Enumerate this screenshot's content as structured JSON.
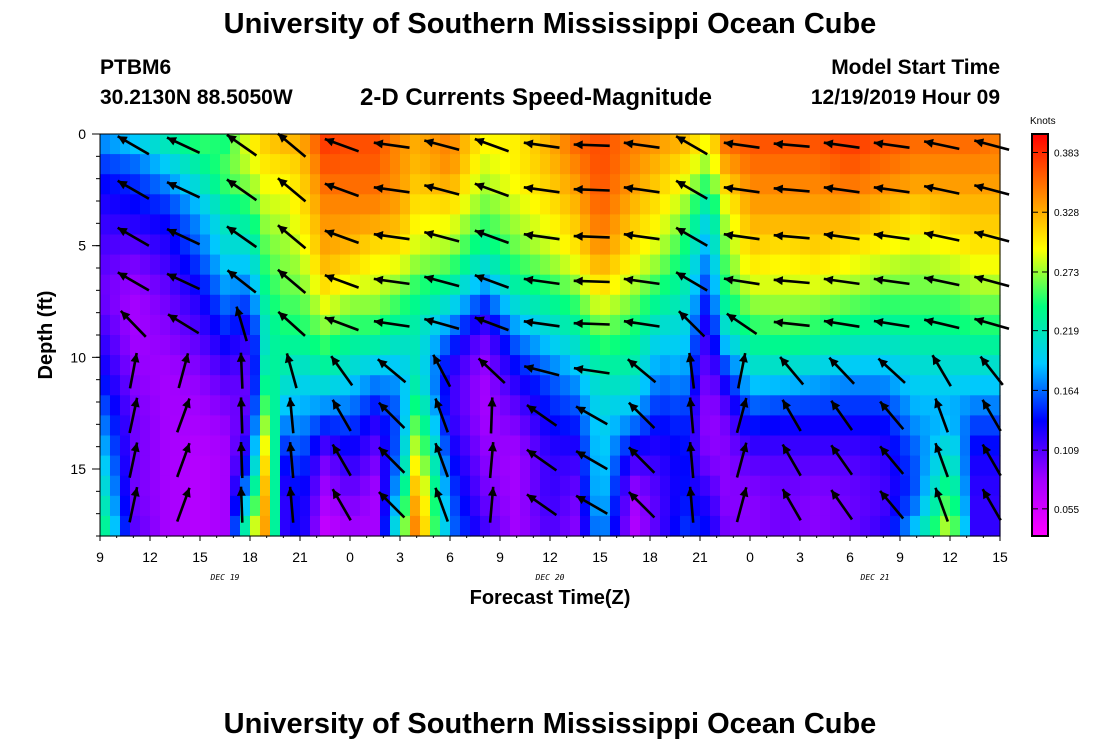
{
  "header": {
    "title": "University of Southern Mississippi Ocean Cube",
    "station_id": "PTBM6",
    "station_coords": "30.2130N 88.5050W",
    "chart_title": "2-D Currents Speed-Magnitude",
    "model_start_label": "Model Start Time",
    "model_start_value": "12/19/2019 Hour 09"
  },
  "footer": {
    "title": "University of Southern Mississippi Ocean Cube"
  },
  "chart_data": {
    "type": "heatmap",
    "title": "2-D Currents Speed-Magnitude",
    "xlabel": "Forecast Time(Z)",
    "ylabel": "Depth (ft)",
    "x_tick_labels": [
      "9",
      "12",
      "15",
      "18",
      "21",
      "0",
      "3",
      "6",
      "9",
      "12",
      "15",
      "18",
      "21",
      "0",
      "3",
      "6",
      "9",
      "12",
      "15"
    ],
    "x_range_hours": [
      0,
      54
    ],
    "day_labels": [
      {
        "label": "DEC 19",
        "hour": 7.5
      },
      {
        "label": "DEC 20",
        "hour": 27
      },
      {
        "label": "DEC 21",
        "hour": 46.5
      }
    ],
    "y_ticks": [
      0,
      5,
      10,
      15
    ],
    "y_range": [
      0,
      18
    ],
    "y_inverted": true,
    "colorbar": {
      "unit": "Knots",
      "ticks": [
        0.383,
        0.328,
        0.273,
        0.219,
        0.164,
        0.109,
        0.055
      ],
      "min": 0.03,
      "max": 0.4,
      "colors": [
        "#ff00ff",
        "#a000ff",
        "#0000ff",
        "#00c8ff",
        "#00ff80",
        "#ffff00",
        "#ff8000",
        "#ff0000"
      ]
    },
    "speed_profiles": [
      {
        "hour": 0,
        "speeds": [
          0.18,
          0.14,
          0.12,
          0.11,
          0.1,
          0.12,
          0.14,
          0.17,
          0.2,
          0.23,
          0.26
        ]
      },
      {
        "hour": 2,
        "speeds": [
          0.2,
          0.15,
          0.13,
          0.1,
          0.08,
          0.08,
          0.09,
          0.1,
          0.1,
          0.1,
          0.11
        ]
      },
      {
        "hour": 4,
        "speeds": [
          0.23,
          0.18,
          0.14,
          0.12,
          0.1,
          0.09,
          0.08,
          0.08,
          0.08,
          0.08,
          0.08
        ]
      },
      {
        "hour": 6,
        "speeds": [
          0.26,
          0.22,
          0.18,
          0.16,
          0.13,
          0.11,
          0.09,
          0.08,
          0.07,
          0.07,
          0.07
        ]
      },
      {
        "hour": 7.5,
        "speeds": [
          0.24,
          0.26,
          0.22,
          0.2,
          0.17,
          0.14,
          0.11,
          0.09,
          0.08,
          0.08,
          0.08
        ]
      },
      {
        "hour": 9,
        "speeds": [
          0.3,
          0.28,
          0.24,
          0.2,
          0.16,
          0.12,
          0.1,
          0.11,
          0.14,
          0.2,
          0.28
        ]
      },
      {
        "hour": 10,
        "speeds": [
          0.32,
          0.3,
          0.28,
          0.26,
          0.24,
          0.22,
          0.24,
          0.28,
          0.32,
          0.34,
          0.34
        ]
      },
      {
        "hour": 11,
        "speeds": [
          0.33,
          0.3,
          0.28,
          0.27,
          0.26,
          0.24,
          0.22,
          0.18,
          0.14,
          0.12,
          0.12
        ]
      },
      {
        "hour": 12,
        "speeds": [
          0.33,
          0.31,
          0.3,
          0.28,
          0.26,
          0.24,
          0.2,
          0.18,
          0.16,
          0.14,
          0.14
        ]
      },
      {
        "hour": 13.5,
        "speeds": [
          0.38,
          0.36,
          0.34,
          0.33,
          0.3,
          0.26,
          0.22,
          0.16,
          0.1,
          0.08,
          0.06
        ]
      },
      {
        "hour": 15,
        "speeds": [
          0.37,
          0.36,
          0.34,
          0.32,
          0.28,
          0.24,
          0.2,
          0.16,
          0.13,
          0.1,
          0.08
        ]
      },
      {
        "hour": 16.5,
        "speeds": [
          0.37,
          0.36,
          0.34,
          0.3,
          0.28,
          0.24,
          0.18,
          0.13,
          0.1,
          0.08,
          0.08
        ]
      },
      {
        "hour": 18,
        "speeds": [
          0.34,
          0.34,
          0.33,
          0.3,
          0.26,
          0.22,
          0.18,
          0.16,
          0.17,
          0.2,
          0.24
        ]
      },
      {
        "hour": 19,
        "speeds": [
          0.33,
          0.32,
          0.3,
          0.28,
          0.24,
          0.22,
          0.22,
          0.26,
          0.3,
          0.34,
          0.36
        ]
      },
      {
        "hour": 21,
        "speeds": [
          0.35,
          0.34,
          0.3,
          0.27,
          0.22,
          0.16,
          0.12,
          0.12,
          0.14,
          0.16,
          0.17
        ]
      },
      {
        "hour": 23,
        "speeds": [
          0.3,
          0.28,
          0.26,
          0.22,
          0.16,
          0.1,
          0.08,
          0.08,
          0.09,
          0.1,
          0.12
        ]
      },
      {
        "hour": 25,
        "speeds": [
          0.3,
          0.3,
          0.28,
          0.26,
          0.22,
          0.17,
          0.13,
          0.1,
          0.08,
          0.08,
          0.08
        ]
      },
      {
        "hour": 27,
        "speeds": [
          0.33,
          0.32,
          0.3,
          0.28,
          0.24,
          0.2,
          0.16,
          0.14,
          0.12,
          0.12,
          0.11
        ]
      },
      {
        "hour": 28.5,
        "speeds": [
          0.36,
          0.34,
          0.32,
          0.3,
          0.26,
          0.22,
          0.18,
          0.15,
          0.12,
          0.1,
          0.09
        ]
      },
      {
        "hour": 30,
        "speeds": [
          0.37,
          0.37,
          0.36,
          0.34,
          0.3,
          0.26,
          0.22,
          0.2,
          0.2,
          0.2,
          0.18
        ]
      },
      {
        "hour": 32,
        "speeds": [
          0.35,
          0.34,
          0.32,
          0.3,
          0.27,
          0.24,
          0.22,
          0.18,
          0.12,
          0.08,
          0.07
        ]
      },
      {
        "hour": 33.5,
        "speeds": [
          0.34,
          0.32,
          0.3,
          0.28,
          0.24,
          0.2,
          0.17,
          0.14,
          0.12,
          0.11,
          0.11
        ]
      },
      {
        "hour": 35,
        "speeds": [
          0.33,
          0.3,
          0.27,
          0.24,
          0.22,
          0.2,
          0.18,
          0.15,
          0.14,
          0.14,
          0.15
        ]
      },
      {
        "hour": 36.5,
        "speeds": [
          0.3,
          0.26,
          0.2,
          0.17,
          0.14,
          0.11,
          0.09,
          0.08,
          0.09,
          0.12,
          0.14
        ]
      },
      {
        "hour": 37.5,
        "speeds": [
          0.36,
          0.32,
          0.28,
          0.26,
          0.24,
          0.2,
          0.14,
          0.1,
          0.09,
          0.09,
          0.1
        ]
      },
      {
        "hour": 39,
        "speeds": [
          0.37,
          0.35,
          0.33,
          0.31,
          0.28,
          0.24,
          0.2,
          0.15,
          0.11,
          0.09,
          0.09
        ]
      },
      {
        "hour": 41,
        "speeds": [
          0.37,
          0.35,
          0.33,
          0.3,
          0.28,
          0.25,
          0.2,
          0.14,
          0.11,
          0.1,
          0.1
        ]
      },
      {
        "hour": 43,
        "speeds": [
          0.37,
          0.35,
          0.33,
          0.31,
          0.28,
          0.24,
          0.19,
          0.14,
          0.11,
          0.09,
          0.09
        ]
      },
      {
        "hour": 45,
        "speeds": [
          0.38,
          0.36,
          0.33,
          0.3,
          0.27,
          0.23,
          0.18,
          0.14,
          0.11,
          0.1,
          0.1
        ]
      },
      {
        "hour": 47,
        "speeds": [
          0.37,
          0.35,
          0.32,
          0.29,
          0.26,
          0.22,
          0.18,
          0.14,
          0.12,
          0.11,
          0.12
        ]
      },
      {
        "hour": 49,
        "speeds": [
          0.36,
          0.34,
          0.31,
          0.28,
          0.26,
          0.23,
          0.2,
          0.18,
          0.16,
          0.16,
          0.2
        ]
      },
      {
        "hour": 51,
        "speeds": [
          0.36,
          0.34,
          0.32,
          0.29,
          0.26,
          0.23,
          0.2,
          0.18,
          0.22,
          0.26,
          0.3
        ]
      },
      {
        "hour": 52.5,
        "speeds": [
          0.36,
          0.34,
          0.32,
          0.3,
          0.27,
          0.24,
          0.2,
          0.16,
          0.13,
          0.12,
          0.12
        ]
      },
      {
        "hour": 54,
        "speeds": [
          0.35,
          0.34,
          0.32,
          0.3,
          0.27,
          0.24,
          0.2,
          0.16,
          0.13,
          0.12,
          0.12
        ]
      }
    ],
    "vector_columns": [
      {
        "hour": 2,
        "surface_angle": 150,
        "bottom_angle": 78,
        "shift_depth": 9,
        "sharpness": 2.5
      },
      {
        "hour": 5,
        "surface_angle": 155,
        "bottom_angle": 70,
        "shift_depth": 9.5,
        "sharpness": 2.5
      },
      {
        "hour": 8.5,
        "surface_angle": 145,
        "bottom_angle": 92,
        "shift_depth": 8,
        "sharpness": 2
      },
      {
        "hour": 11.5,
        "surface_angle": 140,
        "bottom_angle": 95,
        "shift_depth": 10,
        "sharpness": 2
      },
      {
        "hour": 14.5,
        "surface_angle": 160,
        "bottom_angle": 120,
        "shift_depth": 10,
        "sharpness": 3
      },
      {
        "hour": 17.5,
        "surface_angle": 172,
        "bottom_angle": 135,
        "shift_depth": 10,
        "sharpness": 3
      },
      {
        "hour": 20.5,
        "surface_angle": 165,
        "bottom_angle": 110,
        "shift_depth": 10,
        "sharpness": 3
      },
      {
        "hour": 23.5,
        "surface_angle": 160,
        "bottom_angle": 85,
        "shift_depth": 11,
        "sharpness": 2
      },
      {
        "hour": 26.5,
        "surface_angle": 172,
        "bottom_angle": 145,
        "shift_depth": 11,
        "sharpness": 3
      },
      {
        "hour": 29.5,
        "surface_angle": 178,
        "bottom_angle": 150,
        "shift_depth": 11,
        "sharpness": 3
      },
      {
        "hour": 32.5,
        "surface_angle": 172,
        "bottom_angle": 135,
        "shift_depth": 10,
        "sharpness": 3
      },
      {
        "hour": 35.5,
        "surface_angle": 150,
        "bottom_angle": 95,
        "shift_depth": 9,
        "sharpness": 2
      },
      {
        "hour": 38.5,
        "surface_angle": 172,
        "bottom_angle": 75,
        "shift_depth": 9,
        "sharpness": 2
      },
      {
        "hour": 41.5,
        "surface_angle": 175,
        "bottom_angle": 120,
        "shift_depth": 10,
        "sharpness": 2.5
      },
      {
        "hour": 44.5,
        "surface_angle": 172,
        "bottom_angle": 125,
        "shift_depth": 10,
        "sharpness": 2.5
      },
      {
        "hour": 47.5,
        "surface_angle": 172,
        "bottom_angle": 130,
        "shift_depth": 10,
        "sharpness": 2.5
      },
      {
        "hour": 50.5,
        "surface_angle": 168,
        "bottom_angle": 110,
        "shift_depth": 10,
        "sharpness": 2.5
      },
      {
        "hour": 53.5,
        "surface_angle": 165,
        "bottom_angle": 120,
        "shift_depth": 10,
        "sharpness": 2.5
      }
    ],
    "vector_depths": [
      0.5,
      2.5,
      4.6,
      6.6,
      8.5,
      10.6,
      12.6,
      14.6,
      16.6
    ]
  }
}
